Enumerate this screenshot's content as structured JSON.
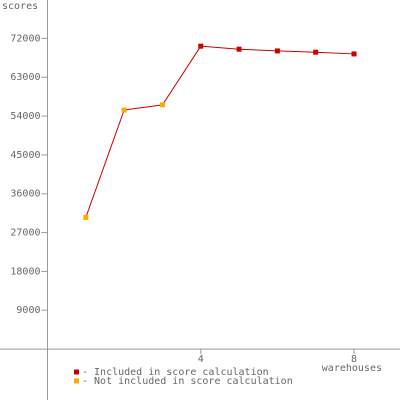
{
  "chart_data": {
    "type": "line",
    "y_label": "scores",
    "x_label": "warehouses",
    "x": [
      1,
      2,
      3,
      4,
      5,
      6,
      7,
      8
    ],
    "line_color": "#cc0000",
    "series": [
      {
        "name": "- Included in score calculation",
        "color": "#cc0000",
        "values": [
          null,
          null,
          null,
          70200,
          69500,
          69100,
          68800,
          68400
        ]
      },
      {
        "name": "- Not included in score calculation",
        "color": "#ffaa00",
        "values": [
          30500,
          55400,
          56600,
          null,
          null,
          null,
          null,
          null
        ]
      }
    ],
    "xlim": [
      -1.24,
      9.2
    ],
    "xticks": [
      4,
      8
    ],
    "ylim": [
      -11800,
      80900
    ],
    "yticks": [
      9000,
      18000,
      27000,
      36000,
      45000,
      54000,
      63000,
      72000
    ]
  }
}
